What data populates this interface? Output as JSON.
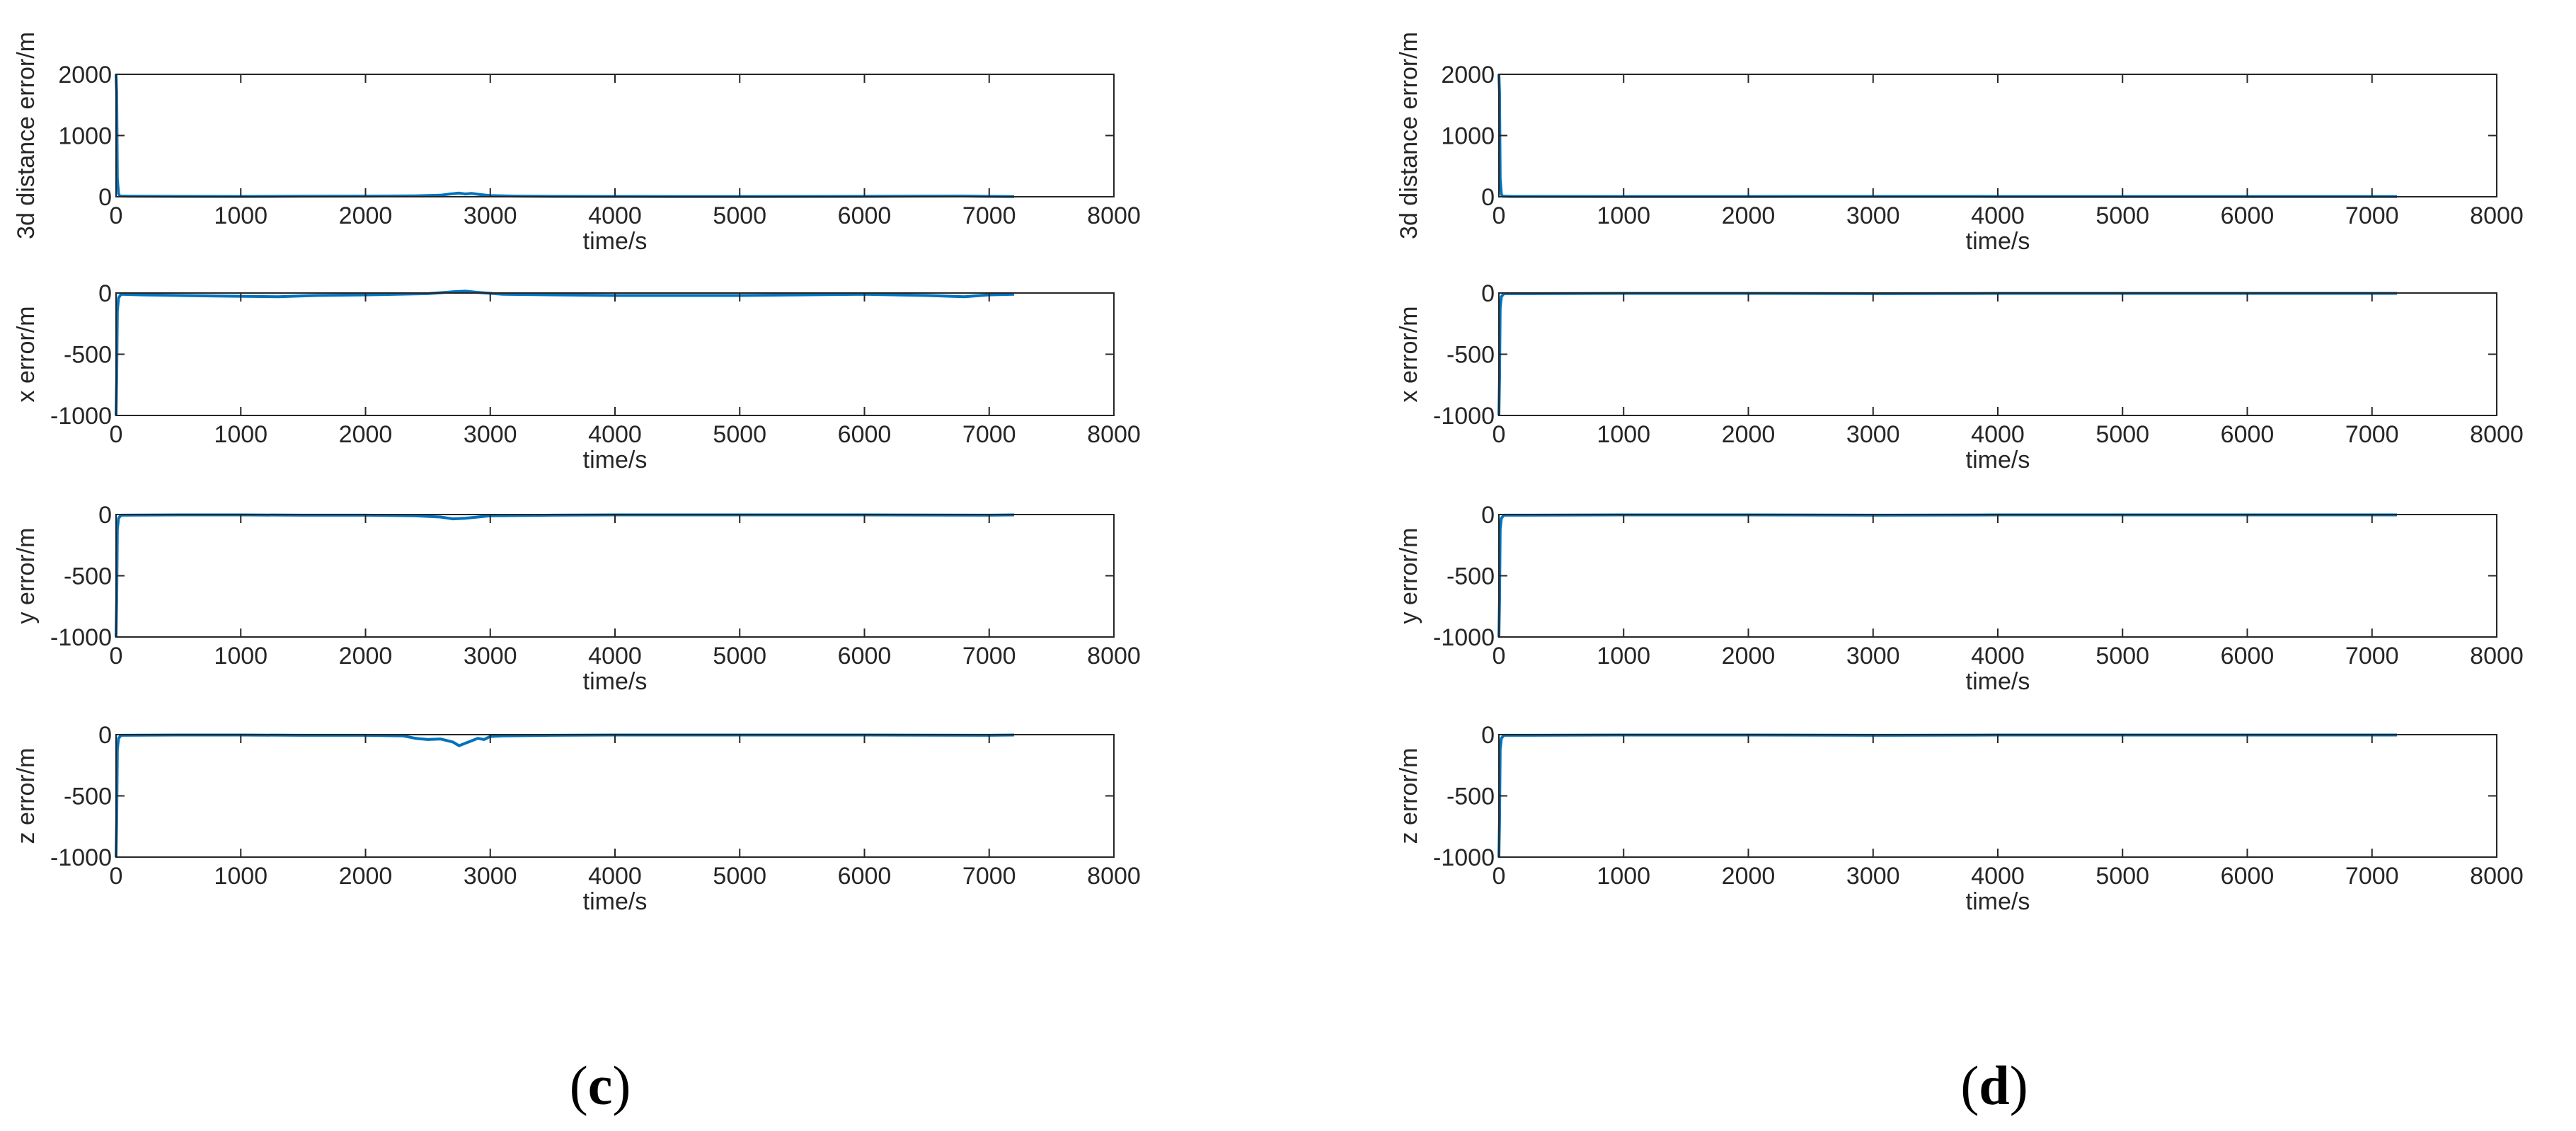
{
  "colors": {
    "line": "#0072BD",
    "axes": "#262626",
    "background": "#ffffff"
  },
  "panels": [
    {
      "label": "c"
    },
    {
      "label": "d"
    }
  ],
  "chart_data": [
    {
      "type": "line",
      "panel": "c",
      "xlabel": "time/s",
      "ylabel": "3d distance error/m",
      "xlim": [
        0,
        8000
      ],
      "ylim": [
        0,
        2000
      ],
      "xticks": [
        "0",
        "1000",
        "2000",
        "3000",
        "4000",
        "5000",
        "6000",
        "7000",
        "8000"
      ],
      "yticks": [
        "0",
        "1000",
        "2000"
      ],
      "grid": false,
      "series": [
        {
          "x": [
            0,
            5,
            10,
            20,
            30,
            100,
            500,
            1000,
            1500,
            2000,
            2400,
            2600,
            2700,
            2750,
            2800,
            2850,
            2900,
            3000,
            3200,
            3500,
            4000,
            4500,
            5000,
            5500,
            6000,
            6500,
            6800,
            7000,
            7200
          ],
          "y": [
            2000,
            1700,
            300,
            50,
            12,
            8,
            6,
            5,
            8,
            10,
            15,
            25,
            50,
            60,
            45,
            55,
            40,
            18,
            10,
            6,
            5,
            4,
            4,
            5,
            6,
            10,
            12,
            6,
            4
          ]
        }
      ]
    },
    {
      "type": "line",
      "panel": "c",
      "xlabel": "time/s",
      "ylabel": "x error/m",
      "xlim": [
        0,
        8000
      ],
      "ylim": [
        -1000,
        0
      ],
      "xticks": [
        "0",
        "1000",
        "2000",
        "3000",
        "4000",
        "5000",
        "6000",
        "7000",
        "8000"
      ],
      "yticks": [
        "-1000",
        "-500",
        "0"
      ],
      "grid": false,
      "series": [
        {
          "x": [
            0,
            5,
            10,
            20,
            40,
            200,
            800,
            1300,
            1600,
            2000,
            2500,
            2700,
            2800,
            2900,
            3100,
            3500,
            4000,
            4500,
            5000,
            5500,
            6000,
            6500,
            6800,
            7000,
            7200
          ],
          "y": [
            -1000,
            -700,
            -150,
            -40,
            -10,
            -15,
            -25,
            -30,
            -20,
            -15,
            -5,
            10,
            15,
            5,
            -10,
            -15,
            -20,
            -20,
            -20,
            -15,
            -10,
            -20,
            -30,
            -15,
            -10
          ]
        }
      ]
    },
    {
      "type": "line",
      "panel": "c",
      "xlabel": "time/s",
      "ylabel": "y error/m",
      "xlim": [
        0,
        8000
      ],
      "ylim": [
        -1000,
        0
      ],
      "xticks": [
        "0",
        "1000",
        "2000",
        "3000",
        "4000",
        "5000",
        "6000",
        "7000",
        "8000"
      ],
      "yticks": [
        "-1000",
        "-500",
        "0"
      ],
      "grid": false,
      "series": [
        {
          "x": [
            0,
            5,
            10,
            20,
            40,
            500,
            1000,
            1500,
            2000,
            2400,
            2600,
            2700,
            2800,
            2900,
            3000,
            3500,
            4000,
            5000,
            6000,
            7000,
            7200
          ],
          "y": [
            -1000,
            -700,
            -120,
            -30,
            -5,
            -3,
            -3,
            -5,
            -5,
            -10,
            -20,
            -35,
            -30,
            -20,
            -10,
            -5,
            -3,
            -3,
            -3,
            -5,
            -3
          ]
        }
      ]
    },
    {
      "type": "line",
      "panel": "c",
      "xlabel": "time/s",
      "ylabel": "z error/m",
      "xlim": [
        0,
        8000
      ],
      "ylim": [
        -1000,
        0
      ],
      "xticks": [
        "0",
        "1000",
        "2000",
        "3000",
        "4000",
        "5000",
        "6000",
        "7000",
        "8000"
      ],
      "yticks": [
        "-1000",
        "-500",
        "0"
      ],
      "grid": false,
      "series": [
        {
          "x": [
            0,
            5,
            10,
            20,
            40,
            500,
            1000,
            1500,
            2000,
            2300,
            2400,
            2500,
            2600,
            2700,
            2750,
            2800,
            2850,
            2900,
            2950,
            3000,
            3100,
            3500,
            4000,
            5000,
            6000,
            7000,
            7200
          ],
          "y": [
            -1000,
            -700,
            -120,
            -30,
            -5,
            -3,
            -3,
            -5,
            -5,
            -10,
            -30,
            -40,
            -35,
            -60,
            -90,
            -70,
            -50,
            -30,
            -40,
            -15,
            -10,
            -5,
            -3,
            -3,
            -3,
            -5,
            -3
          ]
        }
      ]
    },
    {
      "type": "line",
      "panel": "d",
      "xlabel": "time/s",
      "ylabel": "3d distance error/m",
      "xlim": [
        0,
        8000
      ],
      "ylim": [
        0,
        2000
      ],
      "xticks": [
        "0",
        "1000",
        "2000",
        "3000",
        "4000",
        "5000",
        "6000",
        "7000",
        "8000"
      ],
      "yticks": [
        "0",
        "1000",
        "2000"
      ],
      "grid": false,
      "series": [
        {
          "x": [
            0,
            5,
            10,
            20,
            30,
            100,
            1000,
            2000,
            3000,
            4000,
            5000,
            6000,
            7000,
            7200
          ],
          "y": [
            2000,
            1700,
            300,
            40,
            8,
            5,
            4,
            4,
            5,
            4,
            4,
            4,
            4,
            3
          ]
        }
      ]
    },
    {
      "type": "line",
      "panel": "d",
      "xlabel": "time/s",
      "ylabel": "x error/m",
      "xlim": [
        0,
        8000
      ],
      "ylim": [
        -1000,
        0
      ],
      "xticks": [
        "0",
        "1000",
        "2000",
        "3000",
        "4000",
        "5000",
        "6000",
        "7000",
        "8000"
      ],
      "yticks": [
        "-1000",
        "-500",
        "0"
      ],
      "grid": false,
      "series": [
        {
          "x": [
            0,
            5,
            10,
            20,
            40,
            1000,
            2000,
            3000,
            4000,
            5000,
            6000,
            7000,
            7200
          ],
          "y": [
            -1000,
            -700,
            -120,
            -30,
            -5,
            -3,
            -3,
            -5,
            -3,
            -3,
            -3,
            -3,
            -3
          ]
        }
      ]
    },
    {
      "type": "line",
      "panel": "d",
      "xlabel": "time/s",
      "ylabel": "y error/m",
      "xlim": [
        0,
        8000
      ],
      "ylim": [
        -1000,
        0
      ],
      "xticks": [
        "0",
        "1000",
        "2000",
        "3000",
        "4000",
        "5000",
        "6000",
        "7000",
        "8000"
      ],
      "yticks": [
        "-1000",
        "-500",
        "0"
      ],
      "grid": false,
      "series": [
        {
          "x": [
            0,
            5,
            10,
            20,
            40,
            1000,
            2000,
            3000,
            4000,
            5000,
            6000,
            7000,
            7200
          ],
          "y": [
            -1000,
            -700,
            -120,
            -30,
            -5,
            -3,
            -3,
            -5,
            -3,
            -3,
            -3,
            -3,
            -3
          ]
        }
      ]
    },
    {
      "type": "line",
      "panel": "d",
      "xlabel": "time/s",
      "ylabel": "z error/m",
      "xlim": [
        0,
        8000
      ],
      "ylim": [
        -1000,
        0
      ],
      "xticks": [
        "0",
        "1000",
        "2000",
        "3000",
        "4000",
        "5000",
        "6000",
        "7000",
        "8000"
      ],
      "yticks": [
        "-1000",
        "-500",
        "0"
      ],
      "grid": false,
      "series": [
        {
          "x": [
            0,
            5,
            10,
            20,
            40,
            1000,
            2000,
            3000,
            4000,
            5000,
            6000,
            7000,
            7200
          ],
          "y": [
            -1000,
            -700,
            -120,
            -30,
            -5,
            -3,
            -3,
            -5,
            -3,
            -3,
            -3,
            -3,
            -3
          ]
        }
      ]
    }
  ]
}
